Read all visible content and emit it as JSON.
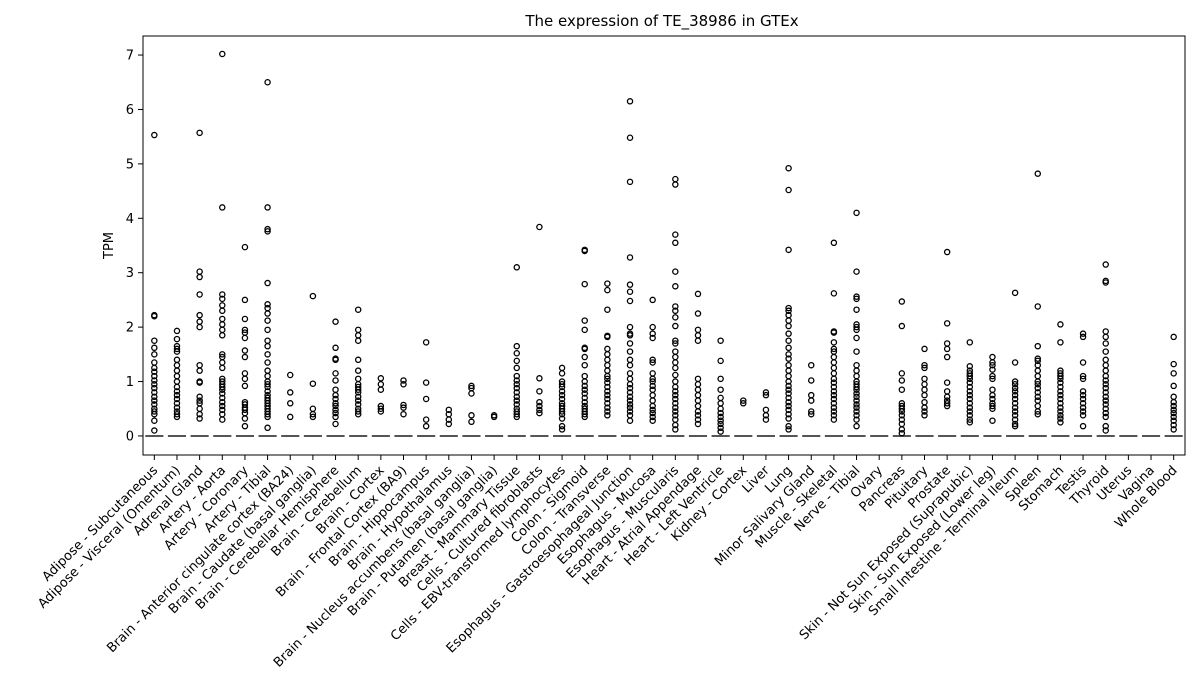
{
  "chart_data": {
    "type": "box",
    "title": "The expression of TE_38986 in GTEx",
    "xlabel": "",
    "ylabel": "TPM",
    "ylim": [
      -0.35,
      7.35
    ],
    "yticks": [
      0,
      1,
      2,
      3,
      4,
      5,
      6,
      7
    ],
    "grid": false,
    "note_values": "Each tissue box collapses at 0 TPM; listed values are the visible outlier points (approximate).",
    "categories": [
      "Adipose - Subcutaneous",
      "Adipose - Visceral (Omentum)",
      "Adrenal Gland",
      "Artery - Aorta",
      "Artery - Coronary",
      "Artery - Tibial",
      "Brain - Anterior cingulate cortex (BA24)",
      "Brain - Caudate (basal ganglia)",
      "Brain - Cerebellar Hemisphere",
      "Brain - Cerebellum",
      "Brain - Cortex",
      "Brain - Frontal Cortex (BA9)",
      "Brain - Hippocampus",
      "Brain - Hypothalamus",
      "Brain - Nucleus accumbens (basal ganglia)",
      "Brain - Putamen (basal ganglia)",
      "Breast - Mammary Tissue",
      "Cells - Cultured fibroblasts",
      "Cells - EBV-transformed lymphocytes",
      "Colon - Sigmoid",
      "Colon - Transverse",
      "Esophagus - Gastroesophageal Junction",
      "Esophagus - Mucosa",
      "Esophagus - Muscularis",
      "Heart - Atrial Appendage",
      "Heart - Left Ventricle",
      "Kidney - Cortex",
      "Liver",
      "Lung",
      "Minor Salivary Gland",
      "Muscle - Skeletal",
      "Nerve - Tibial",
      "Ovary",
      "Pancreas",
      "Pituitary",
      "Prostate",
      "Skin - Not Sun Exposed (Suprapubic)",
      "Skin - Sun Exposed (Lower leg)",
      "Small Intestine - Terminal Ileum",
      "Spleen",
      "Stomach",
      "Testis",
      "Thyroid",
      "Uterus",
      "Vagina",
      "Whole Blood"
    ],
    "medians": [
      0,
      0,
      0,
      0,
      0,
      0,
      0,
      0,
      0,
      0,
      0,
      0,
      0,
      0,
      0,
      0,
      0,
      0,
      0,
      0,
      0,
      0,
      0,
      0,
      0,
      0,
      0,
      0,
      0,
      0,
      0,
      0,
      0,
      0,
      0,
      0,
      0,
      0,
      0,
      0,
      0,
      0,
      0,
      0,
      0,
      0
    ],
    "outliers": [
      [
        5.53,
        2.22,
        2.2,
        1.75,
        1.62,
        1.5,
        1.35,
        1.25,
        1.18,
        1.1,
        1.02,
        0.95,
        0.88,
        0.8,
        0.72,
        0.65,
        0.58,
        0.5,
        0.45,
        0.4,
        0.28,
        0.1
      ],
      [
        1.93,
        1.78,
        1.65,
        1.6,
        1.55,
        1.4,
        1.3,
        1.2,
        1.1,
        1.0,
        0.9,
        0.82,
        0.75,
        0.68,
        0.6,
        0.52,
        0.45,
        0.4,
        0.35
      ],
      [
        5.57,
        3.02,
        2.92,
        2.6,
        2.22,
        2.1,
        2.0,
        1.3,
        1.2,
        1.0,
        0.98,
        0.72,
        0.65,
        0.6,
        0.5,
        0.4,
        0.32
      ],
      [
        7.02,
        4.2,
        2.6,
        2.52,
        2.4,
        2.3,
        2.15,
        2.05,
        1.95,
        1.85,
        1.5,
        1.45,
        1.35,
        1.25,
        1.05,
        1.0,
        0.95,
        0.9,
        0.85,
        0.78,
        0.7,
        0.62,
        0.55,
        0.48,
        0.4,
        0.3
      ],
      [
        3.47,
        2.5,
        2.15,
        1.95,
        1.9,
        1.8,
        1.57,
        1.45,
        1.15,
        1.05,
        0.92,
        0.62,
        0.58,
        0.52,
        0.48,
        0.42,
        0.32,
        0.18
      ],
      [
        6.5,
        4.2,
        3.8,
        3.76,
        2.81,
        2.42,
        2.35,
        2.25,
        2.12,
        1.95,
        1.75,
        1.65,
        1.5,
        1.35,
        1.2,
        1.1,
        1.0,
        0.95,
        0.9,
        0.82,
        0.75,
        0.7,
        0.65,
        0.6,
        0.55,
        0.5,
        0.45,
        0.4,
        0.35,
        0.15
      ],
      [
        1.12,
        0.8,
        0.6,
        0.35
      ],
      [
        2.57,
        0.96,
        0.5,
        0.4,
        0.35
      ],
      [
        2.1,
        1.62,
        1.42,
        1.4,
        1.15,
        1.02,
        0.85,
        0.75,
        0.68,
        0.6,
        0.55,
        0.48,
        0.42,
        0.35,
        0.22
      ],
      [
        2.32,
        1.95,
        1.85,
        1.75,
        1.4,
        1.2,
        1.05,
        0.95,
        0.9,
        0.85,
        0.8,
        0.72,
        0.65,
        0.58,
        0.5,
        0.45,
        0.4
      ],
      [
        1.06,
        0.95,
        0.85,
        0.55,
        0.5,
        0.45
      ],
      [
        1.02,
        0.95,
        0.57,
        0.52,
        0.4
      ],
      [
        1.72,
        0.98,
        0.68,
        0.3,
        0.18
      ],
      [
        0.48,
        0.4,
        0.3,
        0.22
      ],
      [
        0.92,
        0.88,
        0.78,
        0.38,
        0.26
      ],
      [
        0.38,
        0.35
      ],
      [
        3.1,
        1.65,
        1.52,
        1.38,
        1.25,
        1.1,
        1.02,
        0.95,
        0.88,
        0.8,
        0.72,
        0.65,
        0.58,
        0.5,
        0.45,
        0.4,
        0.35
      ],
      [
        3.84,
        1.06,
        0.82,
        0.62,
        0.55,
        0.48,
        0.42
      ],
      [
        1.25,
        1.15,
        1.0,
        0.95,
        0.9,
        0.82,
        0.75,
        0.68,
        0.6,
        0.55,
        0.5,
        0.45,
        0.4,
        0.32,
        0.18,
        0.12
      ],
      [
        3.42,
        3.4,
        2.79,
        2.12,
        1.95,
        1.62,
        1.6,
        1.45,
        1.3,
        1.1,
        1.0,
        0.92,
        0.85,
        0.78,
        0.7,
        0.62,
        0.55,
        0.5,
        0.45,
        0.4,
        0.35
      ],
      [
        2.8,
        2.68,
        2.32,
        1.84,
        1.82,
        1.6,
        1.5,
        1.4,
        1.3,
        1.2,
        1.1,
        1.05,
        0.98,
        0.9,
        0.82,
        0.75,
        0.68,
        0.6,
        0.52,
        0.45,
        0.38
      ],
      [
        6.15,
        5.48,
        4.67,
        3.28,
        2.78,
        2.65,
        2.48,
        2.0,
        1.88,
        1.85,
        1.7,
        1.55,
        1.4,
        1.3,
        1.15,
        1.05,
        0.95,
        0.88,
        0.8,
        0.72,
        0.65,
        0.58,
        0.52,
        0.45,
        0.38,
        0.28
      ],
      [
        2.5,
        2.0,
        1.88,
        1.8,
        1.4,
        1.35,
        1.15,
        1.05,
        1.0,
        0.92,
        0.85,
        0.75,
        0.65,
        0.55,
        0.48,
        0.42,
        0.35,
        0.28
      ],
      [
        4.72,
        4.62,
        3.7,
        3.55,
        3.02,
        2.75,
        2.38,
        2.3,
        2.18,
        2.02,
        1.75,
        1.7,
        1.55,
        1.45,
        1.35,
        1.25,
        1.12,
        1.0,
        0.9,
        0.82,
        0.75,
        0.68,
        0.6,
        0.52,
        0.45,
        0.38,
        0.3,
        0.2,
        0.12
      ],
      [
        2.61,
        2.25,
        1.95,
        1.85,
        1.75,
        1.05,
        0.95,
        0.85,
        0.75,
        0.65,
        0.55,
        0.45,
        0.38,
        0.3,
        0.22
      ],
      [
        1.75,
        1.38,
        1.05,
        0.85,
        0.7,
        0.6,
        0.5,
        0.42,
        0.35,
        0.28,
        0.22,
        0.15,
        0.08
      ],
      [
        0.65,
        0.6
      ],
      [
        0.8,
        0.75,
        0.48,
        0.38,
        0.3
      ],
      [
        4.92,
        4.52,
        3.42,
        2.35,
        2.3,
        2.22,
        2.12,
        2.02,
        1.88,
        1.75,
        1.62,
        1.5,
        1.42,
        1.3,
        1.2,
        1.1,
        1.0,
        0.92,
        0.85,
        0.78,
        0.7,
        0.62,
        0.55,
        0.48,
        0.4,
        0.32,
        0.18,
        0.12
      ],
      [
        1.3,
        1.02,
        0.75,
        0.65,
        0.45,
        0.4
      ],
      [
        3.55,
        2.62,
        1.92,
        1.9,
        1.72,
        1.6,
        1.55,
        1.45,
        1.35,
        1.25,
        1.15,
        1.05,
        0.98,
        0.9,
        0.82,
        0.75,
        0.68,
        0.6,
        0.52,
        0.45,
        0.38,
        0.3
      ],
      [
        4.1,
        3.02,
        2.56,
        2.52,
        2.32,
        2.05,
        2.0,
        1.95,
        1.8,
        1.55,
        1.3,
        1.2,
        1.1,
        1.0,
        0.95,
        0.9,
        0.85,
        0.78,
        0.72,
        0.65,
        0.58,
        0.52,
        0.45,
        0.38,
        0.3,
        0.18
      ],
      [],
      [
        2.47,
        2.02,
        1.15,
        1.02,
        0.85,
        0.6,
        0.55,
        0.5,
        0.45,
        0.38,
        0.3,
        0.22,
        0.12,
        0.05
      ],
      [
        1.6,
        1.3,
        1.25,
        1.05,
        0.95,
        0.85,
        0.75,
        0.62,
        0.52,
        0.45,
        0.38
      ],
      [
        3.38,
        2.07,
        1.7,
        1.6,
        1.45,
        0.98,
        0.82,
        0.72,
        0.65,
        0.6,
        0.55
      ],
      [
        1.72,
        1.28,
        1.2,
        1.15,
        1.1,
        1.05,
        0.98,
        0.9,
        0.82,
        0.75,
        0.68,
        0.6,
        0.52,
        0.45,
        0.38,
        0.3,
        0.25
      ],
      [
        1.45,
        1.35,
        1.3,
        1.22,
        1.1,
        1.05,
        0.85,
        0.75,
        0.68,
        0.6,
        0.55,
        0.5,
        0.28
      ],
      [
        2.63,
        1.35,
        1.0,
        0.95,
        0.88,
        0.82,
        0.75,
        0.68,
        0.6,
        0.52,
        0.45,
        0.38,
        0.3,
        0.22,
        0.18
      ],
      [
        4.82,
        2.38,
        1.65,
        1.42,
        1.38,
        1.3,
        1.2,
        1.1,
        1.0,
        0.95,
        0.88,
        0.8,
        0.72,
        0.65,
        0.55,
        0.45,
        0.4
      ],
      [
        2.05,
        1.72,
        1.2,
        1.15,
        1.1,
        1.05,
        0.98,
        0.9,
        0.82,
        0.75,
        0.68,
        0.6,
        0.52,
        0.45,
        0.38,
        0.32,
        0.25
      ],
      [
        1.88,
        1.82,
        1.35,
        1.1,
        1.05,
        0.82,
        0.75,
        0.68,
        0.6,
        0.52,
        0.45,
        0.38,
        0.18
      ],
      [
        3.15,
        2.85,
        2.82,
        1.92,
        1.82,
        1.7,
        1.55,
        1.4,
        1.3,
        1.2,
        1.1,
        1.02,
        0.95,
        0.88,
        0.8,
        0.72,
        0.65,
        0.58,
        0.5,
        0.42,
        0.35,
        0.18,
        0.1
      ],
      [],
      [],
      [
        1.82,
        1.32,
        1.15,
        0.92,
        0.72,
        0.62,
        0.55,
        0.48,
        0.42,
        0.35,
        0.28,
        0.2,
        0.12
      ]
    ]
  }
}
